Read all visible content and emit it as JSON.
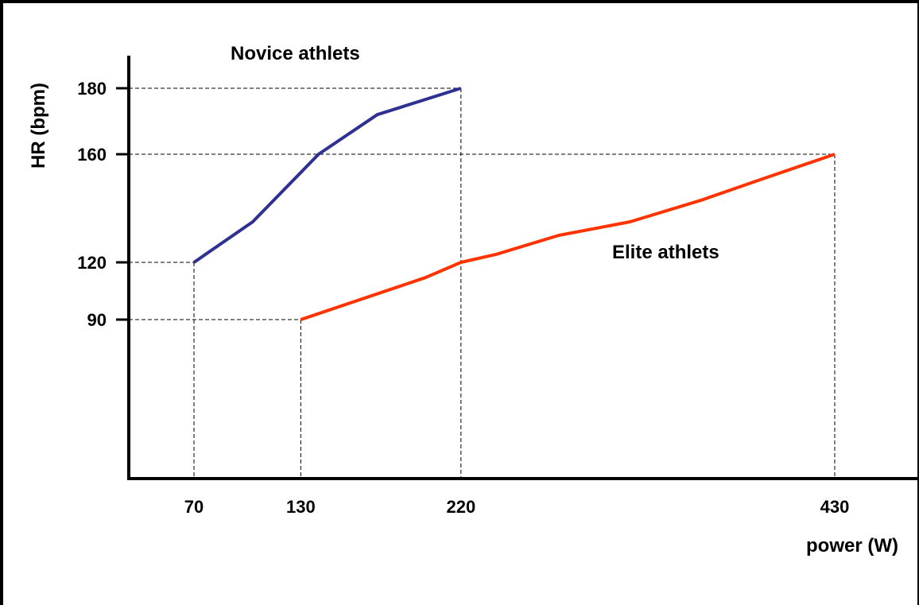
{
  "chart_data": {
    "type": "line",
    "xlabel": "power (W)",
    "ylabel": "HR (bpm)",
    "x_ticks": [
      70,
      130,
      220,
      430
    ],
    "y_ticks": [
      90,
      120,
      160,
      180
    ],
    "series": [
      {
        "name": "Novice athlets",
        "color": "#2e3192",
        "x": [
          70,
          103,
          140,
          173,
          220
        ],
        "y": [
          120,
          135,
          160,
          172,
          180
        ]
      },
      {
        "name": "Elite athlets",
        "color": "#ff3300",
        "x": [
          130,
          200,
          220,
          240,
          275,
          315,
          355,
          390,
          430
        ],
        "y": [
          90,
          112,
          120,
          123,
          130,
          135,
          143,
          151,
          160
        ]
      }
    ],
    "guide_lines": "dashed"
  }
}
